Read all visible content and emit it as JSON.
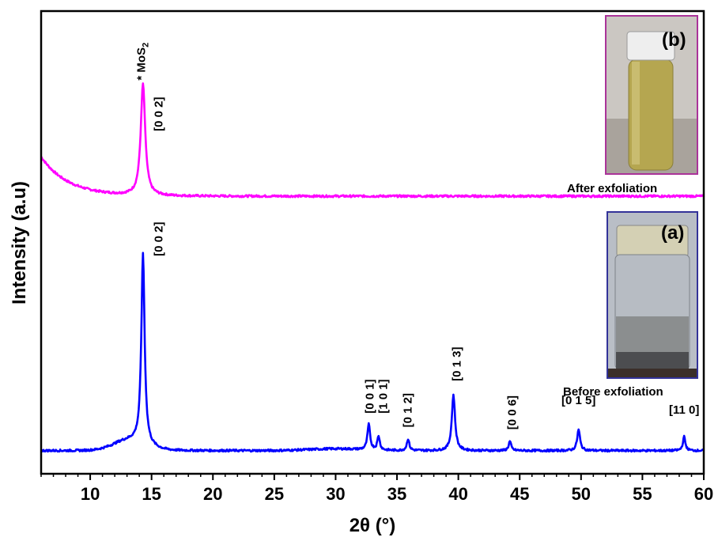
{
  "chart_data": {
    "type": "line",
    "xlabel": "2θ (°)",
    "ylabel": "Intensity (a.u)",
    "xlim": [
      6,
      60
    ],
    "ylim": [
      0,
      100
    ],
    "xticks": [
      10,
      15,
      20,
      25,
      30,
      35,
      40,
      45,
      50,
      55,
      60
    ],
    "grid": false,
    "series": [
      {
        "key": "after",
        "color": "#ff00ff",
        "baseline": 60,
        "peaks": [
          {
            "x": 14.3,
            "y": 84,
            "w": 0.22
          }
        ]
      },
      {
        "key": "before",
        "color": "#0000ff",
        "baseline": 5,
        "peaks": [
          {
            "x": 14.3,
            "y": 46,
            "w": 0.16
          },
          {
            "x": 32.7,
            "y": 10.5,
            "w": 0.13
          },
          {
            "x": 33.5,
            "y": 8,
            "w": 0.12
          },
          {
            "x": 35.9,
            "y": 7.5,
            "w": 0.12
          },
          {
            "x": 39.6,
            "y": 17,
            "w": 0.16
          },
          {
            "x": 44.2,
            "y": 7,
            "w": 0.12
          },
          {
            "x": 49.8,
            "y": 9.5,
            "w": 0.14
          },
          {
            "x": 58.4,
            "y": 8,
            "w": 0.12
          }
        ]
      }
    ],
    "annotations": [
      {
        "text": "[0 0 2]",
        "x": 15.5,
        "y": 73,
        "rotate": true
      },
      {
        "text": "[0 0 2]",
        "x": 15.5,
        "y": 46,
        "rotate": true
      },
      {
        "text": "* MoS",
        "sub": "2",
        "x": 14.1,
        "y": 84,
        "rotate": true
      },
      {
        "text": "[0 0 1]",
        "x": 32.7,
        "y": 12,
        "rotate": true
      },
      {
        "text": "[1 0 1]",
        "x": 33.8,
        "y": 12,
        "rotate": true
      },
      {
        "text": "[0 1 2]",
        "x": 35.8,
        "y": 9,
        "rotate": true
      },
      {
        "text": "[0 1 3]",
        "x": 39.8,
        "y": 19,
        "rotate": true
      },
      {
        "text": "[0 0 6]",
        "x": 44.3,
        "y": 8.5,
        "rotate": true
      },
      {
        "text": "[0 1 5]",
        "x": 49.8,
        "y": 14,
        "rotate": false
      },
      {
        "text": "[11 0]",
        "x": 58.4,
        "y": 12,
        "rotate": false
      }
    ]
  },
  "insets": [
    {
      "letter": "(b)",
      "caption": "After exfoliation",
      "border": "#aa3399"
    },
    {
      "letter": "(a)",
      "caption": "Before exfoliation",
      "border": "#333399"
    }
  ]
}
